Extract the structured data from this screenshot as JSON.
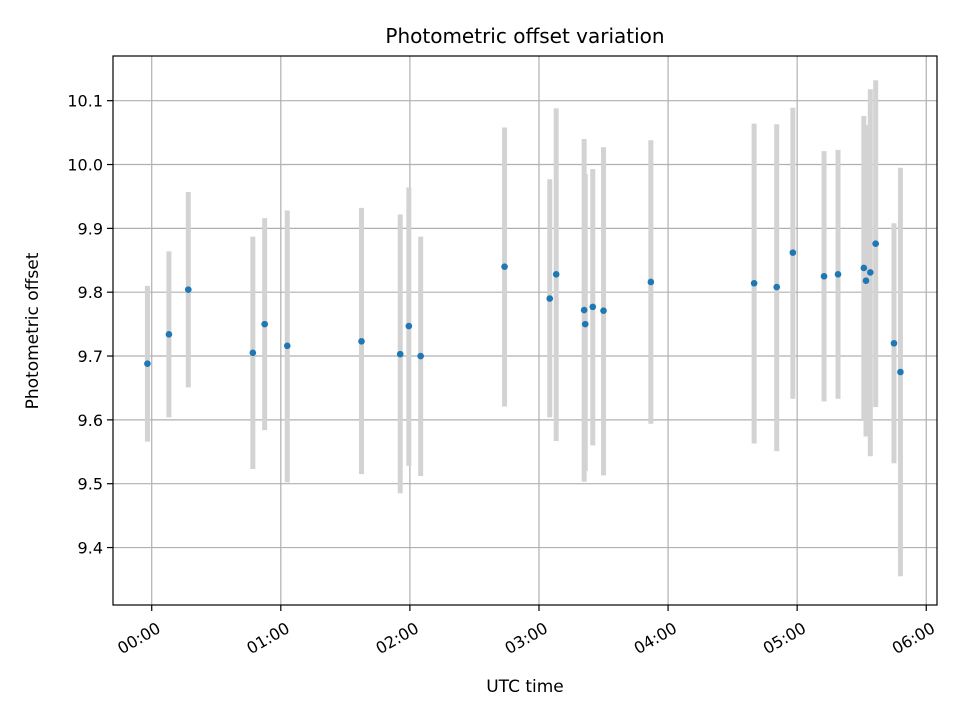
{
  "chart_data": {
    "type": "scatter",
    "title": "Photometric offset variation",
    "xlabel": "UTC time",
    "ylabel": "Photometric offset",
    "xlim_minutes": [
      -18,
      365
    ],
    "ylim": [
      9.31,
      10.17
    ],
    "x_ticks": [
      {
        "label": "00:00",
        "minutes": 0
      },
      {
        "label": "01:00",
        "minutes": 60
      },
      {
        "label": "02:00",
        "minutes": 120
      },
      {
        "label": "03:00",
        "minutes": 180
      },
      {
        "label": "04:00",
        "minutes": 240
      },
      {
        "label": "05:00",
        "minutes": 300
      },
      {
        "label": "06:00",
        "minutes": 360
      }
    ],
    "y_ticks": [
      {
        "label": "9.4",
        "value": 9.4
      },
      {
        "label": "9.5",
        "value": 9.5
      },
      {
        "label": "9.6",
        "value": 9.6
      },
      {
        "label": "9.7",
        "value": 9.7
      },
      {
        "label": "9.8",
        "value": 9.8
      },
      {
        "label": "9.9",
        "value": 9.9
      },
      {
        "label": "10.0",
        "value": 10.0
      },
      {
        "label": "10.1",
        "value": 10.1
      }
    ],
    "grid": true,
    "colors": {
      "point": "#1f77b4",
      "errorbar": "#d3d3d3",
      "grid": "#b0b0b0",
      "axis": "#000000"
    },
    "points": [
      {
        "x": -2.0,
        "y": 9.688,
        "ylow": 9.566,
        "yhigh": 9.81
      },
      {
        "x": 8.0,
        "y": 9.734,
        "ylow": 9.604,
        "yhigh": 9.864
      },
      {
        "x": 17.0,
        "y": 9.804,
        "ylow": 9.651,
        "yhigh": 9.957
      },
      {
        "x": 47.0,
        "y": 9.705,
        "ylow": 9.523,
        "yhigh": 9.887
      },
      {
        "x": 52.5,
        "y": 9.75,
        "ylow": 9.584,
        "yhigh": 9.916
      },
      {
        "x": 63.0,
        "y": 9.716,
        "ylow": 9.502,
        "yhigh": 9.928
      },
      {
        "x": 97.5,
        "y": 9.723,
        "ylow": 9.515,
        "yhigh": 9.932
      },
      {
        "x": 115.5,
        "y": 9.703,
        "ylow": 9.485,
        "yhigh": 9.922
      },
      {
        "x": 119.5,
        "y": 9.747,
        "ylow": 9.528,
        "yhigh": 9.964
      },
      {
        "x": 125.0,
        "y": 9.7,
        "ylow": 9.512,
        "yhigh": 9.887
      },
      {
        "x": 164.0,
        "y": 9.84,
        "ylow": 9.621,
        "yhigh": 10.058
      },
      {
        "x": 185.0,
        "y": 9.79,
        "ylow": 9.604,
        "yhigh": 9.977
      },
      {
        "x": 188.0,
        "y": 9.828,
        "ylow": 9.567,
        "yhigh": 10.088
      },
      {
        "x": 201.0,
        "y": 9.772,
        "ylow": 9.503,
        "yhigh": 10.04
      },
      {
        "x": 201.5,
        "y": 9.75,
        "ylow": 9.52,
        "yhigh": 9.985
      },
      {
        "x": 205.0,
        "y": 9.777,
        "ylow": 9.56,
        "yhigh": 9.993
      },
      {
        "x": 210.0,
        "y": 9.771,
        "ylow": 9.513,
        "yhigh": 10.027
      },
      {
        "x": 232.0,
        "y": 9.816,
        "ylow": 9.594,
        "yhigh": 10.038
      },
      {
        "x": 280.0,
        "y": 9.814,
        "ylow": 9.563,
        "yhigh": 10.064
      },
      {
        "x": 290.5,
        "y": 9.808,
        "ylow": 9.551,
        "yhigh": 10.063
      },
      {
        "x": 298.0,
        "y": 9.862,
        "ylow": 9.633,
        "yhigh": 10.089
      },
      {
        "x": 312.5,
        "y": 9.825,
        "ylow": 9.629,
        "yhigh": 10.021
      },
      {
        "x": 319.0,
        "y": 9.828,
        "ylow": 9.633,
        "yhigh": 10.023
      },
      {
        "x": 331.0,
        "y": 9.838,
        "ylow": 9.6,
        "yhigh": 10.076
      },
      {
        "x": 332.0,
        "y": 9.818,
        "ylow": 9.574,
        "yhigh": 10.062
      },
      {
        "x": 334.0,
        "y": 9.831,
        "ylow": 9.543,
        "yhigh": 10.118
      },
      {
        "x": 336.5,
        "y": 9.876,
        "ylow": 9.62,
        "yhigh": 10.132
      },
      {
        "x": 345.0,
        "y": 9.72,
        "ylow": 9.532,
        "yhigh": 9.908
      },
      {
        "x": 348.0,
        "y": 9.675,
        "ylow": 9.355,
        "yhigh": 9.995
      }
    ]
  }
}
